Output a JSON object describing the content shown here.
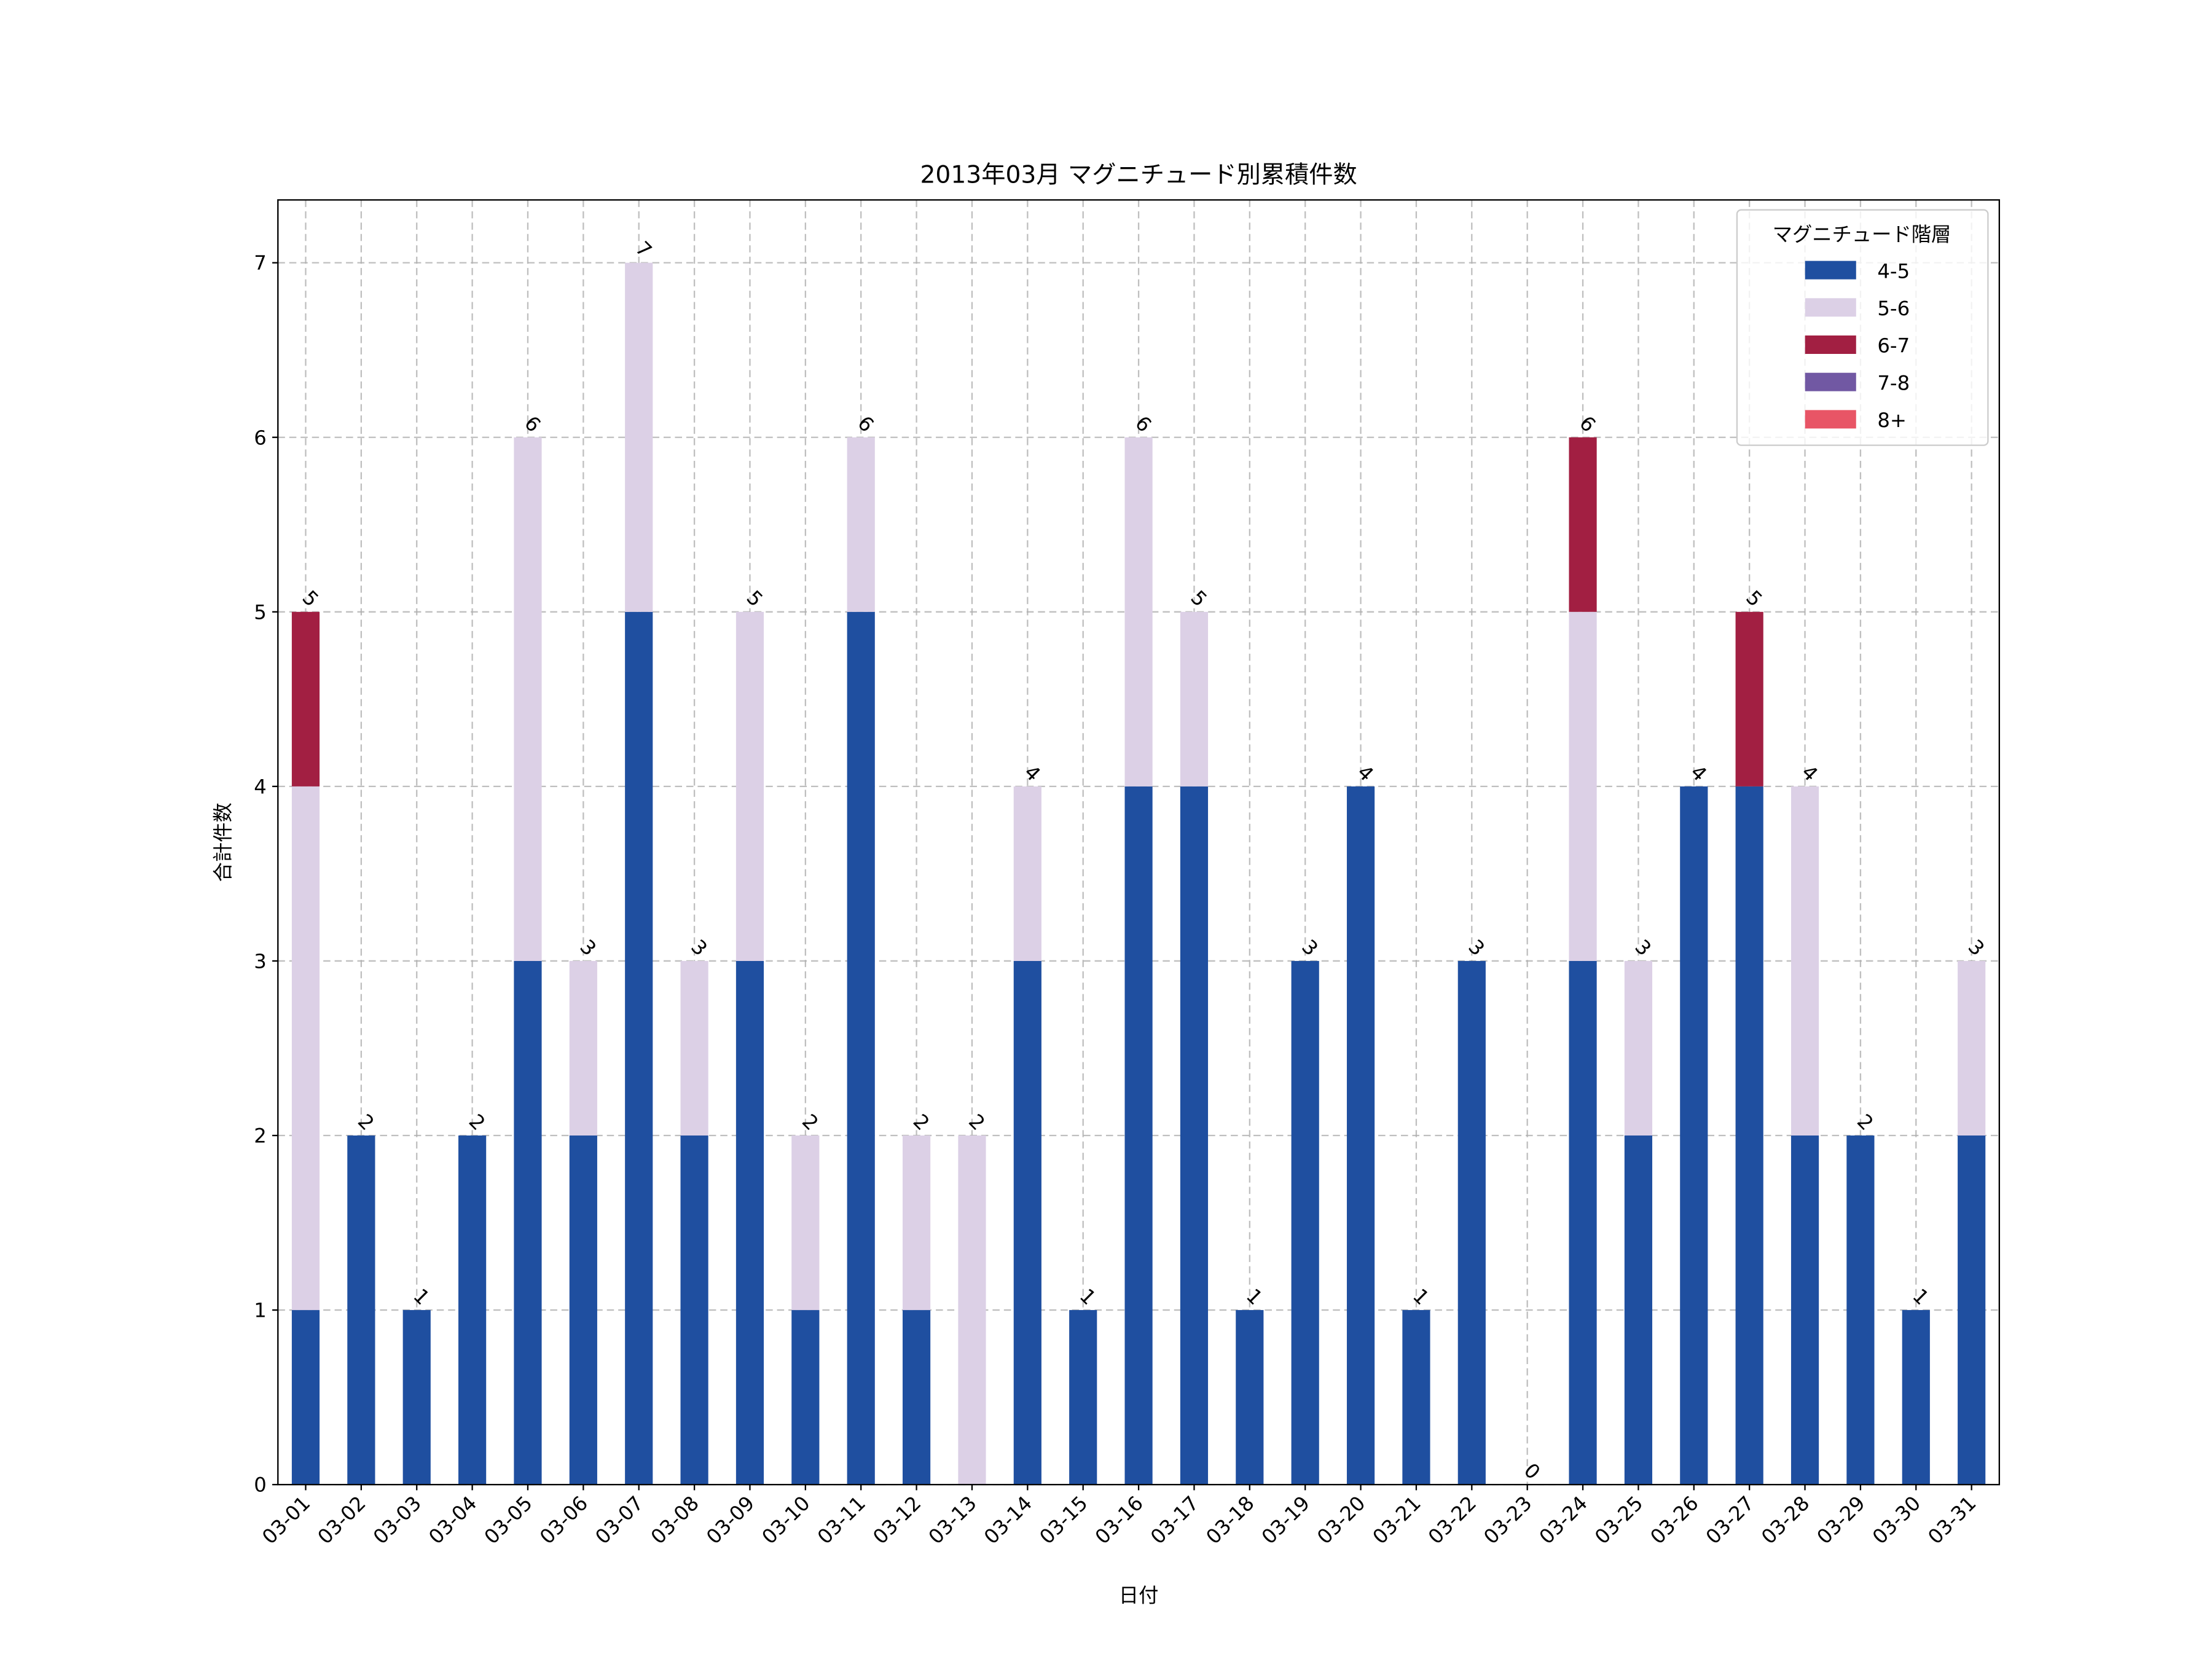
{
  "chart_data": {
    "type": "bar",
    "stacked": true,
    "title": "2013年03月 マグニチュード別累積件数",
    "xlabel": "日付",
    "ylabel": "合計件数",
    "ylim": [
      0,
      7.36
    ],
    "yticks": [
      0,
      1,
      2,
      3,
      4,
      5,
      6,
      7
    ],
    "grid": true,
    "legend": {
      "title": "マグニチュード階層",
      "placement": "top-right"
    },
    "categories": [
      "03-01",
      "03-02",
      "03-03",
      "03-04",
      "03-05",
      "03-06",
      "03-07",
      "03-08",
      "03-09",
      "03-10",
      "03-11",
      "03-12",
      "03-13",
      "03-14",
      "03-15",
      "03-16",
      "03-17",
      "03-18",
      "03-19",
      "03-20",
      "03-21",
      "03-22",
      "03-23",
      "03-24",
      "03-25",
      "03-26",
      "03-27",
      "03-28",
      "03-29",
      "03-30",
      "03-31"
    ],
    "series": [
      {
        "name": "4-5",
        "color": "#1f4fa0",
        "values": [
          1,
          2,
          1,
          2,
          3,
          2,
          5,
          2,
          3,
          1,
          5,
          1,
          0,
          3,
          1,
          4,
          4,
          1,
          3,
          4,
          1,
          3,
          0,
          3,
          2,
          4,
          4,
          2,
          2,
          1,
          2
        ]
      },
      {
        "name": "5-6",
        "color": "#dcd0e6",
        "values": [
          3,
          0,
          0,
          0,
          3,
          1,
          2,
          1,
          2,
          1,
          1,
          1,
          2,
          1,
          0,
          2,
          1,
          0,
          0,
          0,
          0,
          0,
          0,
          2,
          1,
          0,
          0,
          2,
          0,
          0,
          1
        ]
      },
      {
        "name": "6-7",
        "color": "#a21f42",
        "values": [
          1,
          0,
          0,
          0,
          0,
          0,
          0,
          0,
          0,
          0,
          0,
          0,
          0,
          0,
          0,
          0,
          0,
          0,
          0,
          0,
          0,
          0,
          0,
          1,
          0,
          0,
          1,
          0,
          0,
          0,
          0
        ]
      },
      {
        "name": "7-8",
        "color": "#7158a3",
        "values": [
          0,
          0,
          0,
          0,
          0,
          0,
          0,
          0,
          0,
          0,
          0,
          0,
          0,
          0,
          0,
          0,
          0,
          0,
          0,
          0,
          0,
          0,
          0,
          0,
          0,
          0,
          0,
          0,
          0,
          0,
          0
        ]
      },
      {
        "name": "8+",
        "color": "#e85566",
        "values": [
          0,
          0,
          0,
          0,
          0,
          0,
          0,
          0,
          0,
          0,
          0,
          0,
          0,
          0,
          0,
          0,
          0,
          0,
          0,
          0,
          0,
          0,
          0,
          0,
          0,
          0,
          0,
          0,
          0,
          0,
          0
        ]
      }
    ],
    "totals": [
      5,
      2,
      1,
      2,
      6,
      3,
      7,
      3,
      5,
      2,
      6,
      2,
      2,
      4,
      1,
      6,
      5,
      1,
      3,
      4,
      1,
      3,
      0,
      6,
      3,
      4,
      5,
      4,
      2,
      1,
      3
    ]
  }
}
